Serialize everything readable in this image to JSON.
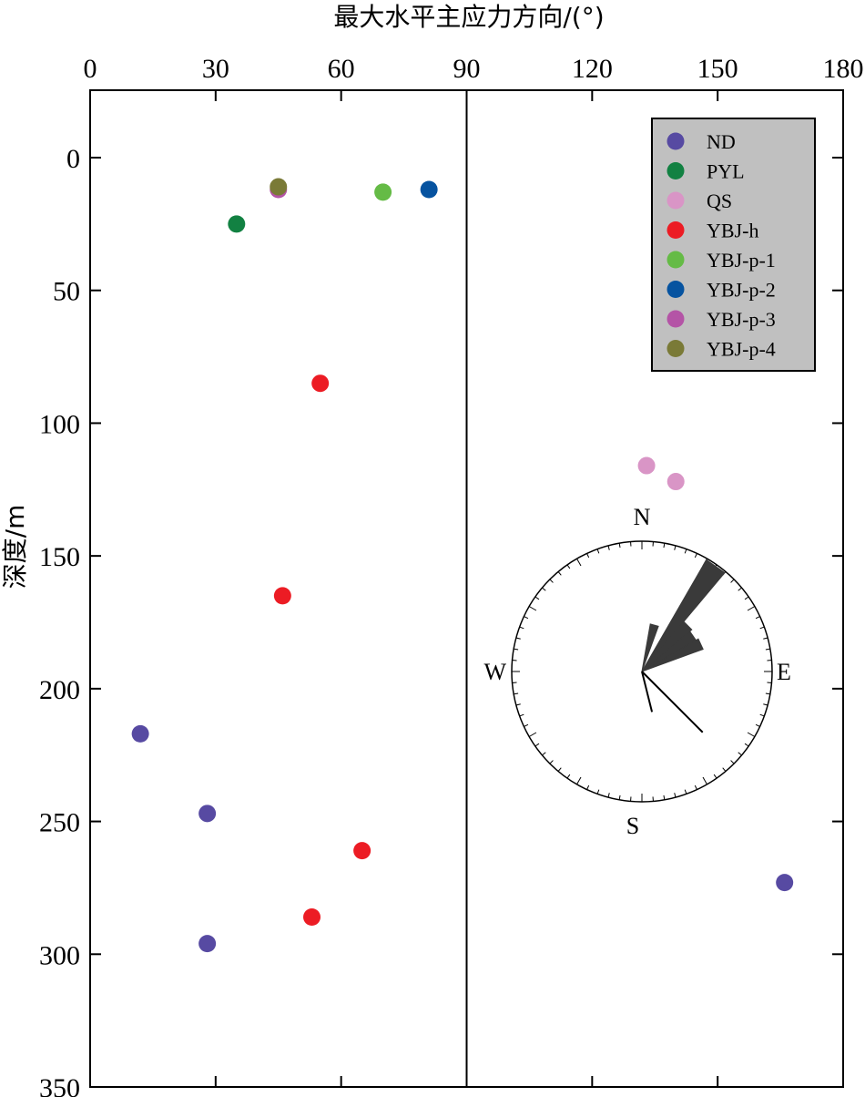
{
  "chart_data": {
    "type": "scatter",
    "title": "",
    "xlabel": "最大水平主应力方向/(°)",
    "ylabel": "深度/m",
    "xlim": [
      0,
      180
    ],
    "ylim": [
      350,
      -20
    ],
    "x_axis_position": "top",
    "y_inverted": true,
    "xticks": [
      0,
      30,
      60,
      90,
      120,
      150,
      180
    ],
    "yticks": [
      0,
      50,
      100,
      150,
      200,
      250,
      300,
      350
    ],
    "vertical_reference_line": 90,
    "grid": false,
    "legend": {
      "placement": "top-right"
    },
    "series": [
      {
        "name": "ND",
        "color": "#574aa2",
        "points": [
          {
            "x": 12,
            "y": 217
          },
          {
            "x": 28,
            "y": 247
          },
          {
            "x": 28,
            "y": 296
          },
          {
            "x": 166,
            "y": 273
          }
        ]
      },
      {
        "name": "PYL",
        "color": "#128142",
        "points": [
          {
            "x": 35,
            "y": 25
          }
        ]
      },
      {
        "name": "QS",
        "color": "#d995c6",
        "points": [
          {
            "x": 133,
            "y": 116
          },
          {
            "x": 140,
            "y": 122
          }
        ]
      },
      {
        "name": "YBJ-h",
        "color": "#ec1c24",
        "points": [
          {
            "x": 55,
            "y": 85
          },
          {
            "x": 46,
            "y": 165
          },
          {
            "x": 65,
            "y": 261
          },
          {
            "x": 53,
            "y": 286
          }
        ]
      },
      {
        "name": "YBJ-p-1",
        "color": "#65bb46",
        "points": [
          {
            "x": 70,
            "y": 13
          }
        ]
      },
      {
        "name": "YBJ-p-2",
        "color": "#0653a0",
        "points": [
          {
            "x": 81,
            "y": 12
          }
        ]
      },
      {
        "name": "YBJ-p-3",
        "color": "#b454a6",
        "points": [
          {
            "x": 45,
            "y": 12
          }
        ]
      },
      {
        "name": "YBJ-p-4",
        "color": "#7a7a37",
        "points": [
          {
            "x": 45,
            "y": 11
          }
        ]
      }
    ],
    "rose_diagram": {
      "labels": {
        "north": "N",
        "south": "S",
        "east": "E",
        "west": "W"
      },
      "petals": [
        {
          "from_deg": 30,
          "to_deg": 40,
          "length": 0.99
        },
        {
          "from_deg": 40,
          "to_deg": 50,
          "length": 0.5
        },
        {
          "from_deg": 50,
          "to_deg": 60,
          "length": 0.48
        },
        {
          "from_deg": 60,
          "to_deg": 70,
          "length": 0.5
        },
        {
          "from_deg": 10,
          "to_deg": 20,
          "length": 0.37
        }
      ],
      "lines_deg": [
        {
          "deg": 135,
          "length": 0.66
        },
        {
          "deg": 166,
          "length": 0.32
        }
      ]
    }
  }
}
